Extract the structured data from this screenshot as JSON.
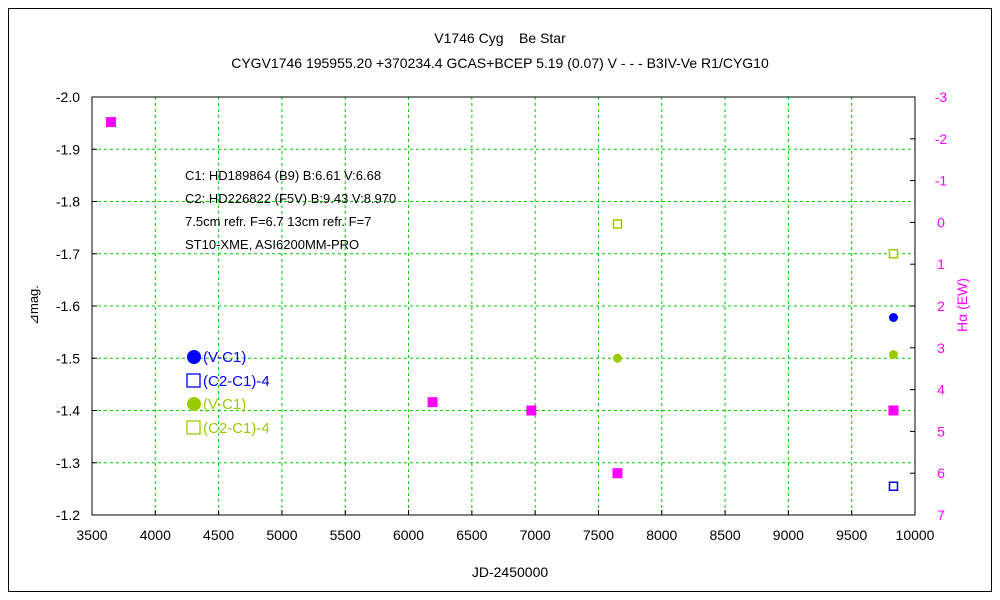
{
  "chart_data": {
    "type": "scatter",
    "title": "V1746 Cyg    Be Star",
    "subtitle": "CYGV1746 195955.20 +370234.4 GCAS+BCEP 5.19 (0.07) V - - - B3IV-Ve R1/CYG10",
    "xlabel": "JD-2450000",
    "ylabel": "⊿mag.",
    "y2label": "Hα (EW)",
    "xlim": [
      3500,
      10000
    ],
    "ylim": [
      -2.0,
      -1.2
    ],
    "y_inverted": true,
    "y2lim": [
      -3,
      7
    ],
    "y2_inverted": false,
    "x_ticks": [
      "3500",
      "4000",
      "4500",
      "5000",
      "5500",
      "6000",
      "6500",
      "7000",
      "7500",
      "8000",
      "8500",
      "9000",
      "9500",
      "10000"
    ],
    "y_ticks": [
      "-2.0",
      "-1.9",
      "-1.8",
      "-1.7",
      "-1.6",
      "-1.5",
      "-1.4",
      "-1.3",
      "-1.2"
    ],
    "y2_ticks": [
      "-3",
      "-2",
      "-1",
      "0",
      "1",
      "2",
      "3",
      "4",
      "5",
      "6",
      "7"
    ],
    "grid": true,
    "annotations": [
      "C1: HD189864 (B9)  B:6.61  V:6.68",
      "C2: HD226822 (F5V)  B:9.43 V:8.970",
      "7.5cm refr. F=6.7  13cm refr. F=7",
      "ST10-XME,  ASI6200MM-PRO"
    ],
    "legend_placement": "left",
    "series": [
      {
        "name": "(V-C1)",
        "color": "#0000ff",
        "marker": "filled-circle",
        "axis": "left",
        "points": [
          {
            "x": 9830,
            "y": -1.578
          }
        ]
      },
      {
        "name": "(C2-C1)-4",
        "color": "#0000ff",
        "marker": "open-square",
        "axis": "left",
        "points": [
          {
            "x": 9830,
            "y": -1.255
          }
        ]
      },
      {
        "name": "(V-C1)",
        "color": "#99cc00",
        "marker": "filled-circle",
        "axis": "left",
        "points": [
          {
            "x": 7650,
            "y": -1.5
          },
          {
            "x": 9830,
            "y": -1.507
          }
        ]
      },
      {
        "name": "(C2-C1)-4",
        "color": "#99cc00",
        "marker": "open-square",
        "axis": "left",
        "points": [
          {
            "x": 7650,
            "y": -1.757
          },
          {
            "x": 9830,
            "y": -1.7
          }
        ]
      },
      {
        "name": "",
        "color": "#ff00ff",
        "marker": "filled-square",
        "axis": "right",
        "points": [
          {
            "x": 3650,
            "y": -2.4
          },
          {
            "x": 6190,
            "y": 4.3
          },
          {
            "x": 6970,
            "y": 4.5
          },
          {
            "x": 7650,
            "y": 6.0
          },
          {
            "x": 9830,
            "y": 4.5
          }
        ]
      }
    ]
  }
}
